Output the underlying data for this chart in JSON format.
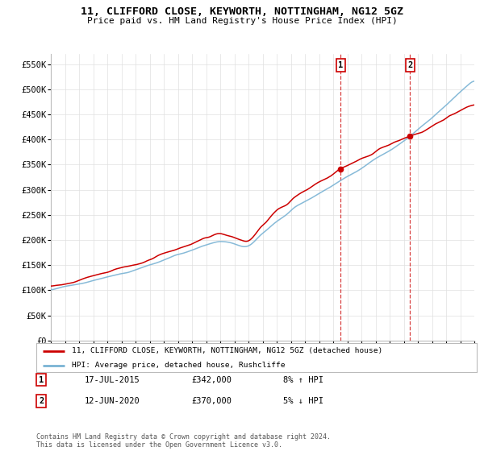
{
  "title": "11, CLIFFORD CLOSE, KEYWORTH, NOTTINGHAM, NG12 5GZ",
  "subtitle": "Price paid vs. HM Land Registry's House Price Index (HPI)",
  "ylabel_ticks": [
    "£0",
    "£50K",
    "£100K",
    "£150K",
    "£200K",
    "£250K",
    "£300K",
    "£350K",
    "£400K",
    "£450K",
    "£500K",
    "£550K"
  ],
  "ytick_values": [
    0,
    50000,
    100000,
    150000,
    200000,
    250000,
    300000,
    350000,
    400000,
    450000,
    500000,
    550000
  ],
  "ylim": [
    0,
    570000
  ],
  "x_start_year": 1995,
  "x_end_year": 2025,
  "sale1_year": 2015.54,
  "sale2_year": 2020.45,
  "sale1_value": 342000,
  "sale2_value": 370000,
  "marker1_label": "1",
  "marker2_label": "2",
  "marker1_date": "17-JUL-2015",
  "marker1_price": "£342,000",
  "marker1_hpi": "8% ↑ HPI",
  "marker2_date": "12-JUN-2020",
  "marker2_price": "£370,000",
  "marker2_hpi": "5% ↓ HPI",
  "legend_line1": "11, CLIFFORD CLOSE, KEYWORTH, NOTTINGHAM, NG12 5GZ (detached house)",
  "legend_line2": "HPI: Average price, detached house, Rushcliffe",
  "footer": "Contains HM Land Registry data © Crown copyright and database right 2024.\nThis data is licensed under the Open Government Licence v3.0.",
  "line_color_red": "#cc0000",
  "line_color_blue": "#7ab3d4",
  "background_color": "#ffffff",
  "grid_color": "#e0e0e0"
}
